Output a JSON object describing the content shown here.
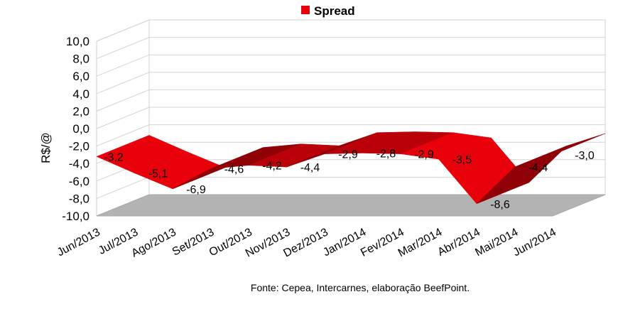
{
  "chart_data": {
    "type": "area",
    "categories": [
      "Jun/2013",
      "Jul/2013",
      "Ago/2013",
      "Set/2013",
      "Out/2013",
      "Nov/2013",
      "Dez/2013",
      "Jan/2014",
      "Fev/2014",
      "Mar/2014",
      "Abr/2014",
      "Mai/2014",
      "Jun/2014"
    ],
    "series": [
      {
        "name": "Spread",
        "values": [
          -3.2,
          -5.1,
          -6.9,
          -4.6,
          -4.2,
          -4.4,
          -2.9,
          -2.8,
          -2.9,
          -3.5,
          -8.6,
          -4.4,
          -3.0
        ],
        "labels": [
          "-3,2",
          "-5,1",
          "-6,9",
          "-4,6",
          "-4,2",
          "-4,4",
          "-2,9",
          "-2,8",
          "-2,9",
          "-3,5",
          "-8,6",
          "-4,4",
          "-3,0"
        ],
        "color": "#e8000b"
      }
    ],
    "ylabel": "R$/@",
    "ylim": [
      -10,
      10
    ],
    "yticks": [
      "10,0",
      "8,0",
      "6,0",
      "4,0",
      "2,0",
      "0,0",
      "-2,0",
      "-4,0",
      "-6,0",
      "-8,0",
      "-10,0"
    ],
    "grid": true,
    "legend_position": "top-center",
    "floor_color": "#b3b3b3",
    "source": "Fonte: Cepea, Intercarnes, elaboração BeefPoint."
  }
}
